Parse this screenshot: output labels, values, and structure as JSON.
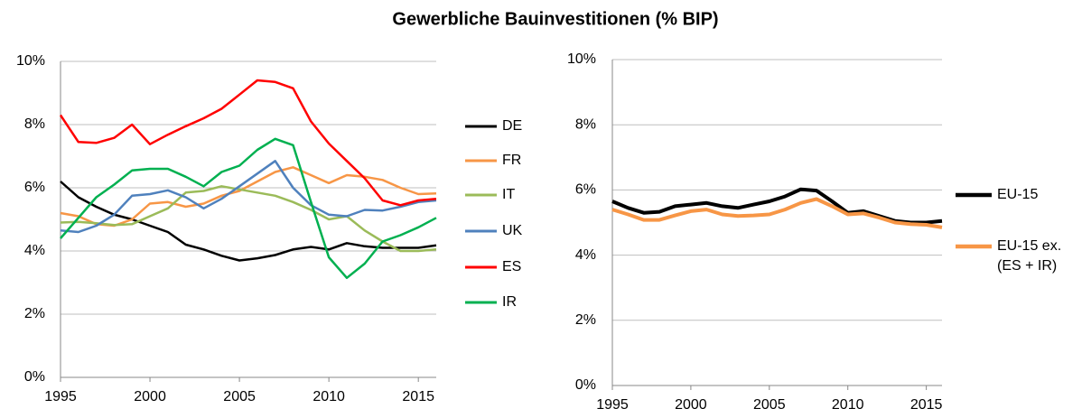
{
  "title": "Gewerbliche Bauinvestitionen (% BIP)",
  "chart_data": [
    {
      "type": "line",
      "x": [
        1995,
        1996,
        1997,
        1998,
        1999,
        2000,
        2001,
        2002,
        2003,
        2004,
        2005,
        2006,
        2007,
        2008,
        2009,
        2010,
        2011,
        2012,
        2013,
        2014,
        2015,
        2016
      ],
      "xlim": [
        1995,
        2016
      ],
      "xticks": [
        1995,
        2000,
        2005,
        2010,
        2015
      ],
      "ylim": [
        0,
        10
      ],
      "yticks": [
        {
          "value": 0,
          "label": "0%"
        },
        {
          "value": 2,
          "label": "2%"
        },
        {
          "value": 4,
          "label": "4%"
        },
        {
          "value": 6,
          "label": "6%"
        },
        {
          "value": 8,
          "label": "8%"
        },
        {
          "value": 10,
          "label": "10%"
        }
      ],
      "grid": true,
      "legend": "right",
      "series": [
        {
          "name": "DE",
          "color": "#000000",
          "values": [
            6.2,
            5.7,
            5.4,
            5.15,
            5.0,
            4.8,
            4.6,
            4.2,
            4.05,
            3.85,
            3.7,
            3.77,
            3.87,
            4.05,
            4.13,
            4.05,
            4.25,
            4.15,
            4.1,
            4.1,
            4.1,
            4.18
          ]
        },
        {
          "name": "FR",
          "color": "#f79646",
          "values": [
            5.2,
            5.1,
            4.85,
            4.8,
            5.0,
            5.5,
            5.55,
            5.4,
            5.5,
            5.75,
            5.9,
            6.2,
            6.5,
            6.65,
            6.4,
            6.15,
            6.4,
            6.35,
            6.25,
            6.0,
            5.8,
            5.82
          ]
        },
        {
          "name": "IT",
          "color": "#9bbb59",
          "values": [
            4.9,
            4.92,
            4.88,
            4.82,
            4.85,
            5.1,
            5.35,
            5.85,
            5.9,
            6.05,
            5.95,
            5.85,
            5.75,
            5.55,
            5.3,
            5.0,
            5.1,
            4.65,
            4.3,
            4.0,
            4.0,
            4.05
          ]
        },
        {
          "name": "UK",
          "color": "#4f81bd",
          "values": [
            4.65,
            4.6,
            4.8,
            5.15,
            5.75,
            5.8,
            5.92,
            5.7,
            5.35,
            5.65,
            6.05,
            6.45,
            6.85,
            6.0,
            5.45,
            5.15,
            5.1,
            5.3,
            5.28,
            5.4,
            5.55,
            5.6
          ]
        },
        {
          "name": "ES",
          "color": "#ff0000",
          "values": [
            8.3,
            7.45,
            7.42,
            7.58,
            8.0,
            7.38,
            7.68,
            7.95,
            8.2,
            8.5,
            8.95,
            9.4,
            9.35,
            9.15,
            8.1,
            7.4,
            6.85,
            6.3,
            5.6,
            5.45,
            5.6,
            5.65
          ]
        },
        {
          "name": "IR",
          "color": "#00b050",
          "values": [
            4.4,
            5.05,
            5.7,
            6.1,
            6.55,
            6.6,
            6.6,
            6.35,
            6.05,
            6.5,
            6.7,
            7.2,
            7.55,
            7.35,
            5.55,
            3.8,
            3.15,
            3.6,
            4.3,
            4.5,
            4.75,
            5.05
          ]
        }
      ]
    },
    {
      "type": "line",
      "x": [
        1995,
        1996,
        1997,
        1998,
        1999,
        2000,
        2001,
        2002,
        2003,
        2004,
        2005,
        2006,
        2007,
        2008,
        2009,
        2010,
        2011,
        2012,
        2013,
        2014,
        2015,
        2016
      ],
      "xlim": [
        1995,
        2016
      ],
      "xticks": [
        1995,
        2000,
        2005,
        2010,
        2015
      ],
      "ylim": [
        0,
        10
      ],
      "yticks": [
        {
          "value": 0,
          "label": "0%"
        },
        {
          "value": 2,
          "label": "2%"
        },
        {
          "value": 4,
          "label": "4%"
        },
        {
          "value": 6,
          "label": "6%"
        },
        {
          "value": 8,
          "label": "8%"
        },
        {
          "value": 10,
          "label": "10%"
        }
      ],
      "grid": true,
      "legend": "right",
      "series": [
        {
          "name": "EU-15",
          "color": "#000000",
          "values": [
            5.65,
            5.45,
            5.3,
            5.33,
            5.5,
            5.55,
            5.6,
            5.5,
            5.45,
            5.55,
            5.65,
            5.8,
            6.02,
            5.98,
            5.65,
            5.3,
            5.35,
            5.2,
            5.05,
            5.0,
            5.0,
            5.05
          ]
        },
        {
          "name": "EU-15 ex. (ES + IR)",
          "color": "#f79646",
          "values": [
            5.4,
            5.25,
            5.08,
            5.08,
            5.22,
            5.35,
            5.4,
            5.25,
            5.2,
            5.22,
            5.25,
            5.4,
            5.6,
            5.72,
            5.5,
            5.25,
            5.28,
            5.15,
            5.0,
            4.95,
            4.93,
            4.85
          ]
        }
      ]
    }
  ]
}
